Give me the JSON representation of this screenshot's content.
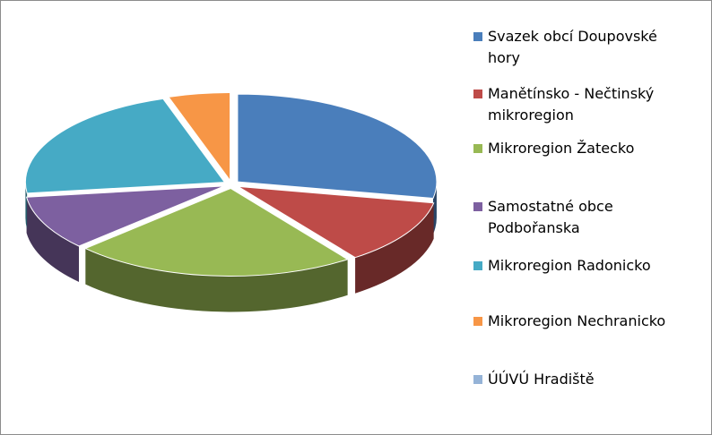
{
  "chart_data": {
    "type": "pie3d",
    "categories": [
      "Svazek obcí Doupovské hory",
      "Manětínsko - Nečtinský mikroregion",
      "Mikroregion Žatecko",
      "Samostatné obce Podbořanska",
      "Mikroregion Radonicko",
      "Mikroregion Nechranicko",
      "ÚÚVÚ Hradiště"
    ],
    "values": [
      28,
      12,
      23,
      10,
      22,
      5,
      0
    ],
    "colors": [
      "#4a7ebb",
      "#be4b48",
      "#98b954",
      "#7d60a0",
      "#46aac5",
      "#f79646",
      "#95b3d7"
    ],
    "legend": "right"
  }
}
